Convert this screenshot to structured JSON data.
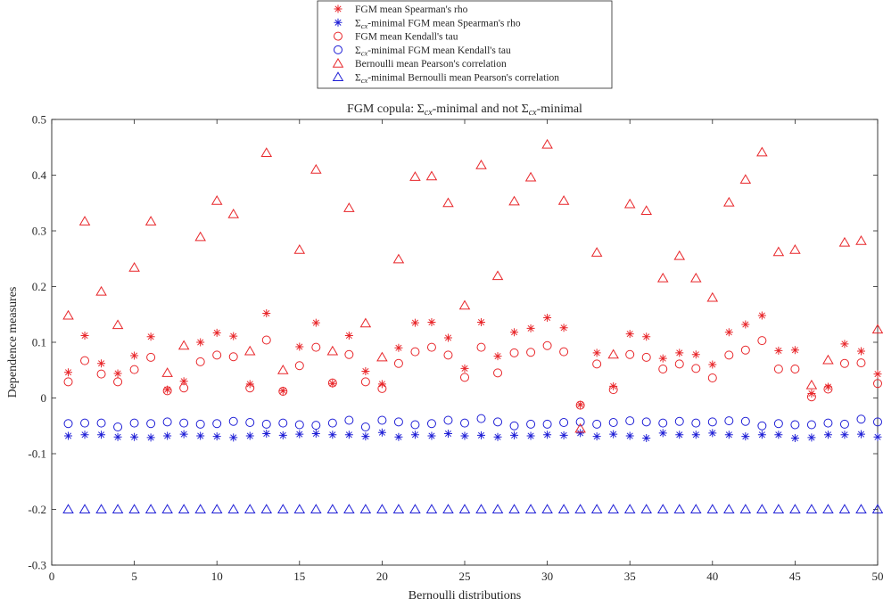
{
  "chart_data": {
    "type": "scatter",
    "title_prefix": "FGM copula: ",
    "title_sym1": "Σ",
    "title_sub1": "cx",
    "title_mid": "-minimal and not ",
    "title_sym2": "Σ",
    "title_sub2": "cx",
    "title_suffix": "-minimal",
    "xlabel": "Bernoulli distributions",
    "ylabel": "Dependence measures",
    "xlim": [
      0,
      50
    ],
    "ylim": [
      -0.3,
      0.5
    ],
    "xticks": [
      0,
      5,
      10,
      15,
      20,
      25,
      30,
      35,
      40,
      45,
      50
    ],
    "yticks": [
      -0.3,
      -0.2,
      -0.1,
      0,
      0.1,
      0.2,
      0.3,
      0.4,
      0.5
    ],
    "ytick_labels": [
      "-0.3",
      "-0.2",
      "-0.1",
      "0",
      "0.1",
      "0.2",
      "0.3",
      "0.4",
      "0.5"
    ],
    "grid": false,
    "legend_position": "top-center-outside",
    "colors": {
      "red": "#e8262a",
      "blue": "#1f1fd6"
    },
    "x": [
      1,
      2,
      3,
      4,
      5,
      6,
      7,
      8,
      9,
      10,
      11,
      12,
      13,
      14,
      15,
      16,
      17,
      18,
      19,
      20,
      21,
      22,
      23,
      24,
      25,
      26,
      27,
      28,
      29,
      30,
      31,
      32,
      33,
      34,
      35,
      36,
      37,
      38,
      39,
      40,
      41,
      42,
      43,
      44,
      45,
      46,
      47,
      48,
      49,
      50
    ],
    "series": [
      {
        "legend": {
          "prefix": "FGM mean Spearman's rho",
          "sym": "",
          "sub": "",
          "suffix": ""
        },
        "marker": "star",
        "color": "red",
        "values": [
          0.046,
          0.112,
          0.062,
          0.044,
          0.076,
          0.11,
          0.015,
          0.03,
          0.1,
          0.117,
          0.111,
          0.025,
          0.152,
          0.013,
          0.092,
          0.135,
          0.026,
          0.112,
          0.048,
          0.025,
          0.09,
          0.135,
          0.136,
          0.108,
          0.053,
          0.136,
          0.075,
          0.118,
          0.125,
          0.144,
          0.126,
          -0.012,
          0.081,
          0.021,
          0.115,
          0.11,
          0.071,
          0.081,
          0.078,
          0.06,
          0.118,
          0.132,
          0.148,
          0.085,
          0.086,
          0.008,
          0.02,
          0.097,
          0.084,
          0.043
        ]
      },
      {
        "legend": {
          "prefix": "",
          "sym": "Σ",
          "sub": "cx",
          "suffix": "-minimal FGM mean Spearman's rho"
        },
        "marker": "star",
        "color": "blue",
        "values": [
          -0.068,
          -0.066,
          -0.066,
          -0.07,
          -0.07,
          -0.071,
          -0.068,
          -0.065,
          -0.068,
          -0.069,
          -0.071,
          -0.068,
          -0.064,
          -0.067,
          -0.065,
          -0.064,
          -0.066,
          -0.066,
          -0.069,
          -0.062,
          -0.07,
          -0.066,
          -0.068,
          -0.064,
          -0.068,
          -0.067,
          -0.07,
          -0.067,
          -0.068,
          -0.066,
          -0.067,
          -0.063,
          -0.069,
          -0.065,
          -0.068,
          -0.072,
          -0.063,
          -0.066,
          -0.066,
          -0.063,
          -0.066,
          -0.069,
          -0.066,
          -0.066,
          -0.072,
          -0.071,
          -0.066,
          -0.066,
          -0.065,
          -0.07
        ]
      },
      {
        "legend": {
          "prefix": "FGM mean Kendall's tau",
          "sym": "",
          "sub": "",
          "suffix": ""
        },
        "marker": "circle",
        "color": "red",
        "values": [
          0.029,
          0.067,
          0.043,
          0.029,
          0.051,
          0.073,
          0.013,
          0.018,
          0.065,
          0.077,
          0.074,
          0.018,
          0.104,
          0.012,
          0.058,
          0.091,
          0.027,
          0.078,
          0.029,
          0.017,
          0.062,
          0.083,
          0.091,
          0.077,
          0.037,
          0.091,
          0.045,
          0.081,
          0.082,
          0.094,
          0.083,
          -0.013,
          0.061,
          0.015,
          0.078,
          0.073,
          0.052,
          0.061,
          0.053,
          0.036,
          0.077,
          0.086,
          0.103,
          0.052,
          0.052,
          0.002,
          0.016,
          0.062,
          0.063,
          0.026
        ]
      },
      {
        "legend": {
          "prefix": "",
          "sym": "Σ",
          "sub": "cx",
          "suffix": "-minimal FGM mean Kendall's tau"
        },
        "marker": "circle",
        "color": "blue",
        "values": [
          -0.046,
          -0.045,
          -0.045,
          -0.052,
          -0.045,
          -0.046,
          -0.043,
          -0.045,
          -0.047,
          -0.046,
          -0.042,
          -0.044,
          -0.047,
          -0.045,
          -0.048,
          -0.049,
          -0.045,
          -0.04,
          -0.052,
          -0.04,
          -0.043,
          -0.048,
          -0.046,
          -0.04,
          -0.045,
          -0.037,
          -0.043,
          -0.05,
          -0.047,
          -0.047,
          -0.044,
          -0.043,
          -0.047,
          -0.044,
          -0.041,
          -0.043,
          -0.045,
          -0.042,
          -0.045,
          -0.043,
          -0.041,
          -0.042,
          -0.05,
          -0.046,
          -0.048,
          -0.048,
          -0.045,
          -0.047,
          -0.038,
          -0.043
        ]
      },
      {
        "legend": {
          "prefix": "Bernoulli mean Pearson's correlation",
          "sym": "",
          "sub": "",
          "suffix": ""
        },
        "marker": "triangle",
        "color": "red",
        "values": [
          0.148,
          0.317,
          0.191,
          0.131,
          0.234,
          0.317,
          0.045,
          0.094,
          0.289,
          0.354,
          0.33,
          0.084,
          0.44,
          0.05,
          0.266,
          0.41,
          0.084,
          0.341,
          0.134,
          0.073,
          0.249,
          0.397,
          0.398,
          0.35,
          0.166,
          0.418,
          0.219,
          0.353,
          0.396,
          0.455,
          0.354,
          -0.055,
          0.261,
          0.078,
          0.348,
          0.336,
          0.215,
          0.255,
          0.215,
          0.18,
          0.351,
          0.392,
          0.441,
          0.262,
          0.266,
          0.023,
          0.068,
          0.279,
          0.282,
          0.123
        ]
      },
      {
        "legend": {
          "prefix": "",
          "sym": "Σ",
          "sub": "cx",
          "suffix": "-minimal Bernoulli mean Pearson's correlation"
        },
        "marker": "triangle",
        "color": "blue",
        "values": [
          -0.2,
          -0.2,
          -0.2,
          -0.2,
          -0.2,
          -0.2,
          -0.2,
          -0.2,
          -0.2,
          -0.2,
          -0.2,
          -0.2,
          -0.2,
          -0.2,
          -0.2,
          -0.2,
          -0.2,
          -0.2,
          -0.2,
          -0.2,
          -0.2,
          -0.2,
          -0.2,
          -0.2,
          -0.2,
          -0.2,
          -0.2,
          -0.2,
          -0.2,
          -0.2,
          -0.2,
          -0.2,
          -0.2,
          -0.2,
          -0.2,
          -0.2,
          -0.2,
          -0.2,
          -0.2,
          -0.2,
          -0.2,
          -0.2,
          -0.2,
          -0.2,
          -0.2,
          -0.2,
          -0.2,
          -0.2,
          -0.2,
          -0.2
        ]
      }
    ]
  }
}
